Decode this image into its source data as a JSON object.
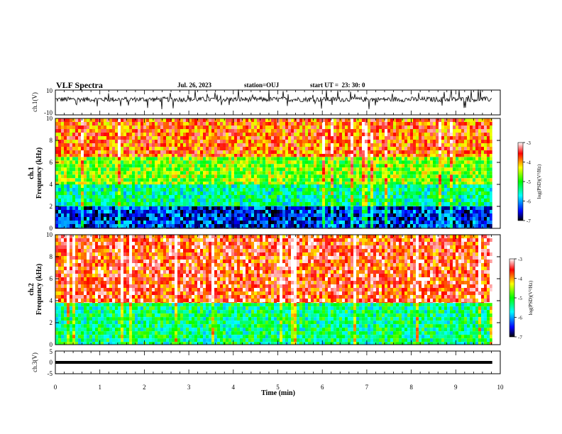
{
  "header": {
    "title": "VLF Spectra",
    "date": "Jul. 26, 2023",
    "station": "station=OUJ",
    "start": "start UT =  23: 30: 0"
  },
  "chart_data": [
    {
      "type": "line",
      "ylabel": "ch.1(V)",
      "ylim": [
        -10,
        10
      ],
      "yticks": [
        "10",
        "-10"
      ],
      "description_values": {
        "baseline_V": 2.5,
        "noise_amplitude_V": 2
      }
    },
    {
      "type": "heatmap",
      "ylabel_lines": [
        "ch.1",
        "Frequency (kHz)"
      ],
      "ylim": [
        0,
        10
      ],
      "yticks": [
        "0",
        "2",
        "4",
        "6",
        "8",
        "10"
      ],
      "colorbar": {
        "label": "log(PSD)(V²/Hz)",
        "ticks": [
          "-3",
          "-4",
          "-5",
          "-6",
          "-7"
        ],
        "range": [
          -7,
          -3
        ]
      },
      "bands_khz": [
        {
          "from": 0,
          "to": 2,
          "logpsd": -6.4
        },
        {
          "from": 2,
          "to": 4,
          "logpsd": -5.4
        },
        {
          "from": 4,
          "to": 6.5,
          "logpsd": -4.7
        },
        {
          "from": 6.5,
          "to": 10,
          "logpsd": -3.8
        }
      ]
    },
    {
      "type": "heatmap",
      "ylabel_lines": [
        "ch.2",
        "Frequency (kHz)"
      ],
      "ylim": [
        0,
        10
      ],
      "yticks": [
        "0",
        "2",
        "4",
        "6",
        "8",
        "10"
      ],
      "colorbar": {
        "label": "log(PSD)(V²/Hz)",
        "ticks": [
          "-3",
          "-4",
          "-5",
          "-6",
          "-7"
        ],
        "range": [
          -7,
          -3
        ]
      },
      "bands_khz": [
        {
          "from": 0,
          "to": 3.8,
          "logpsd": -5.3
        },
        {
          "from": 3.8,
          "to": 10,
          "logpsd": -3.6
        }
      ]
    },
    {
      "type": "line",
      "ylabel": "ch.3(V)",
      "ylim": [
        -5,
        5
      ],
      "yticks": [
        "5",
        "0",
        "-5"
      ],
      "description_values": {
        "level_V": 0
      }
    }
  ],
  "xaxis": {
    "label": "Time (min)",
    "xlim": [
      0,
      10
    ],
    "ticks": [
      "0",
      "1",
      "2",
      "3",
      "4",
      "5",
      "6",
      "7",
      "8",
      "9",
      "10"
    ],
    "data_end_min": 9.82
  },
  "colors": {
    "scale": [
      "#000000",
      "#0000ff",
      "#00ffff",
      "#00ff00",
      "#ffff00",
      "#ff0000",
      "#ffffff"
    ]
  }
}
